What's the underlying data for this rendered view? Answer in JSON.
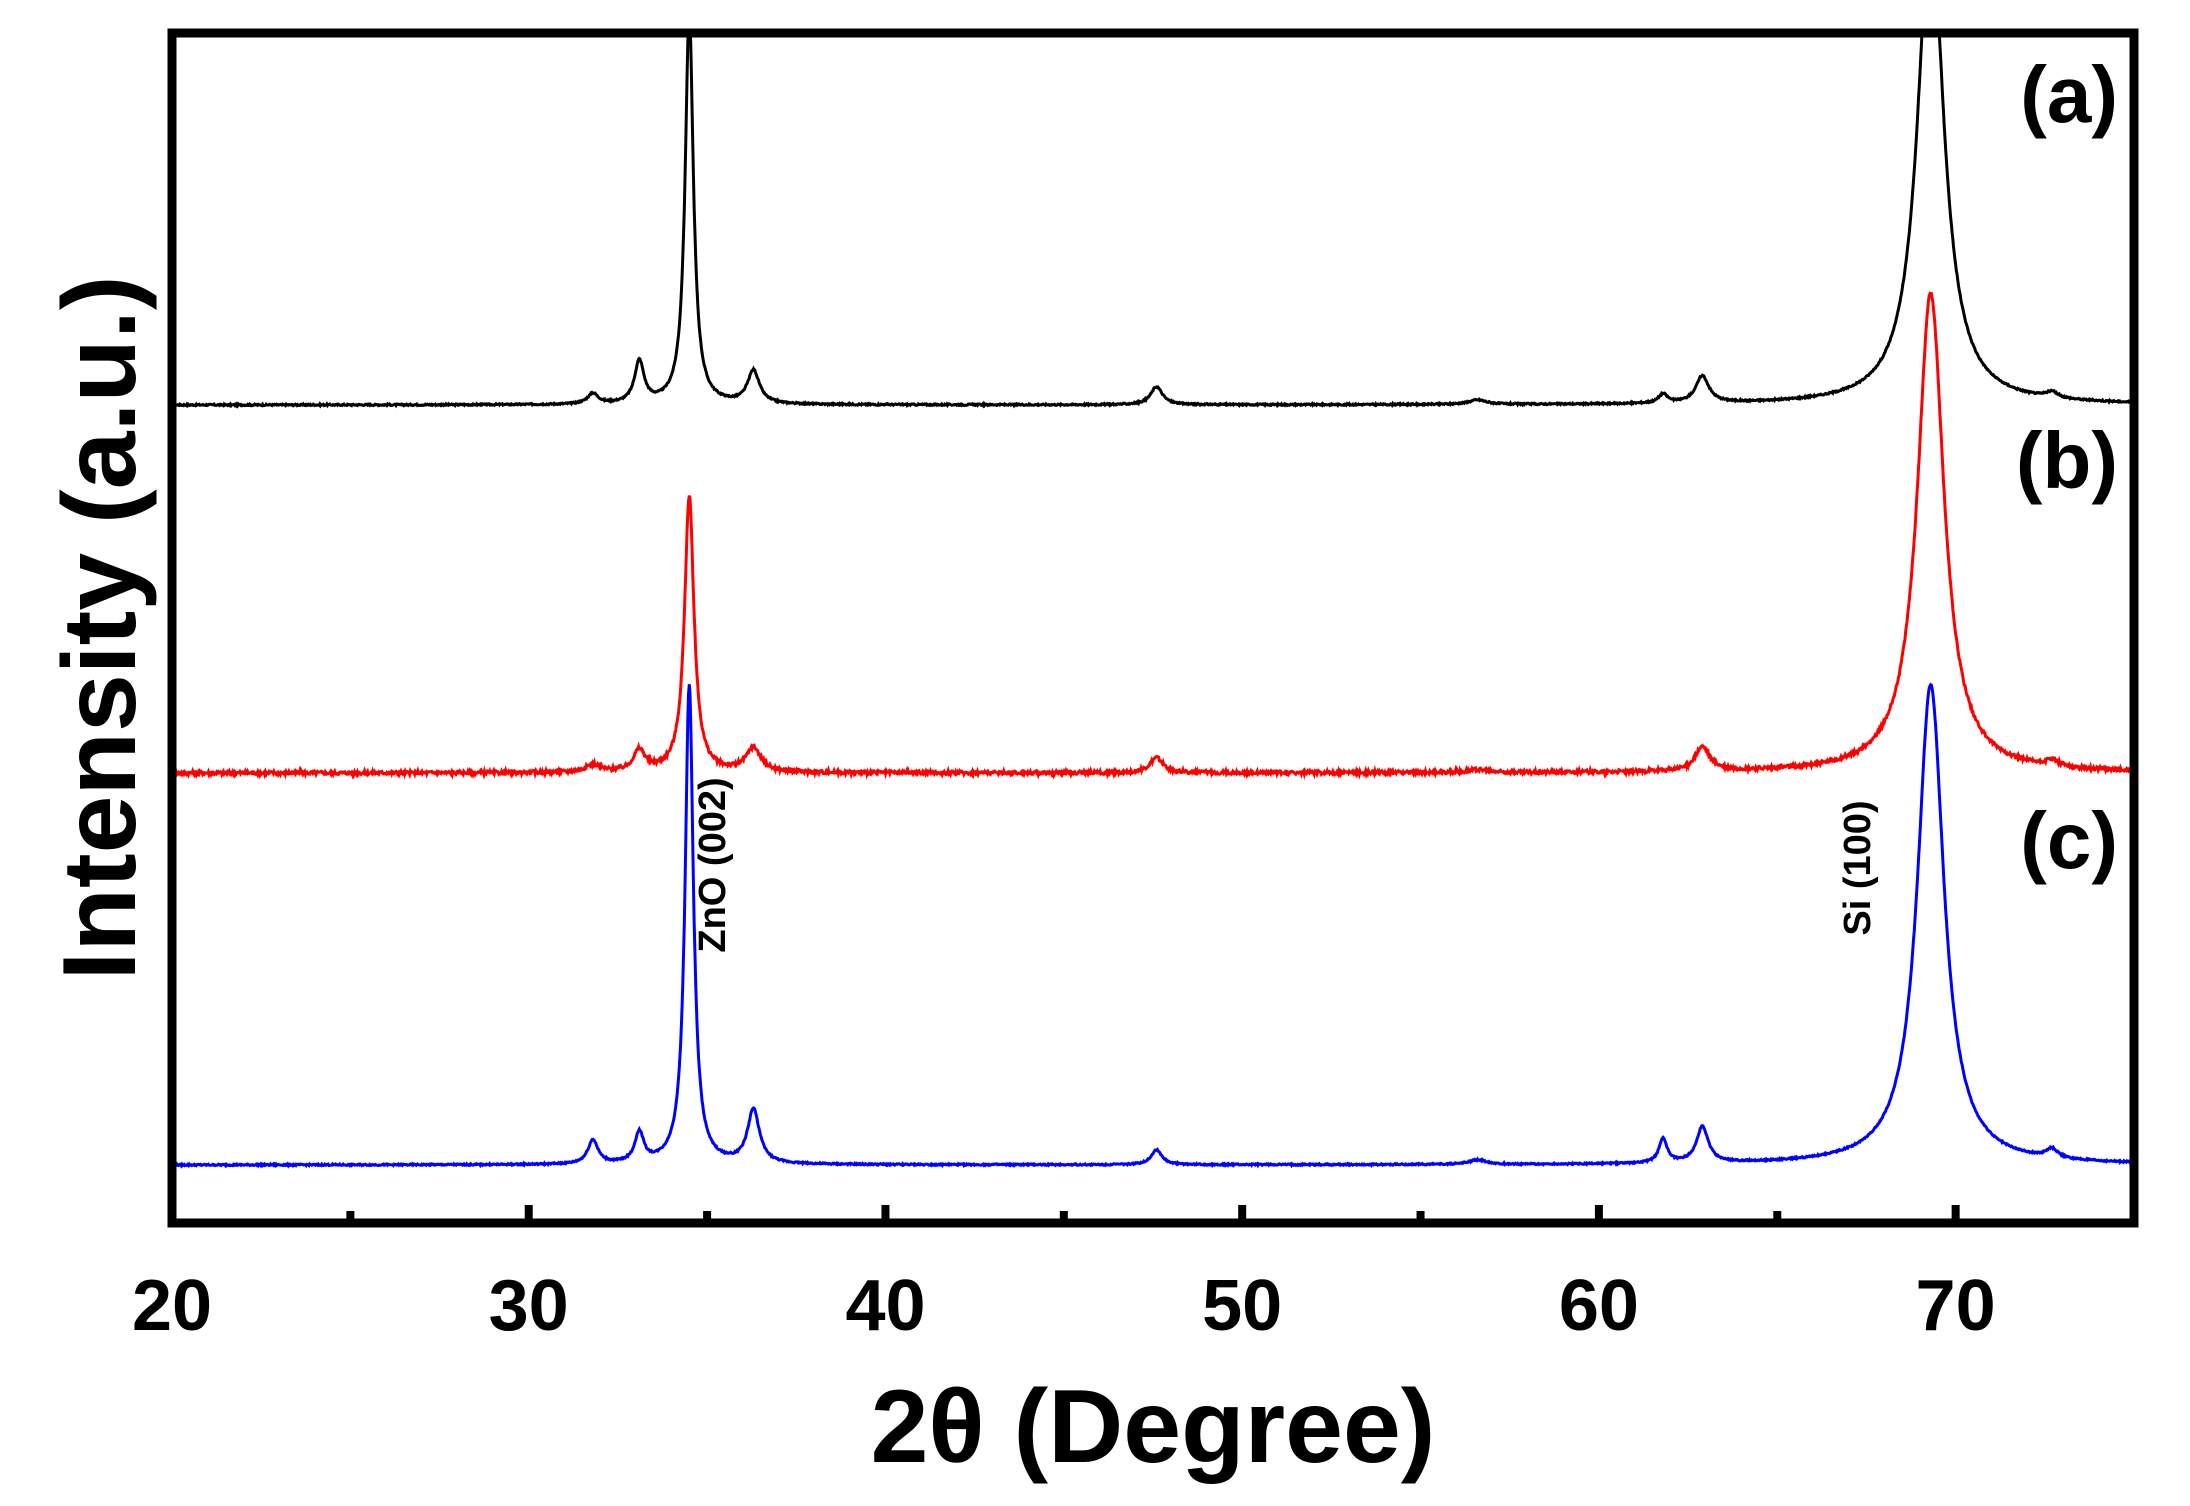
{
  "chart_data": {
    "type": "line",
    "xlabel": "2θ (Degree)",
    "ylabel": "Intensity (a.u.)",
    "xlim": [
      20,
      75
    ],
    "x_major_ticks": [
      20,
      30,
      40,
      50,
      60,
      70
    ],
    "x_minor_ticks": [
      25,
      35,
      45,
      55,
      65,
      75
    ],
    "y_scale": "arbitrary units, curves vertically offset",
    "grid": false,
    "legend": "none",
    "series": [
      {
        "label": "(a)",
        "color": "#000000",
        "offset": 2.0,
        "peaks": [
          {
            "x": 31.8,
            "h": 0.035,
            "w": 0.18
          },
          {
            "x": 33.1,
            "h": 0.14,
            "w": 0.16
          },
          {
            "x": 34.5,
            "h": 1.3,
            "w": 0.14
          },
          {
            "x": 36.3,
            "h": 0.11,
            "w": 0.2
          },
          {
            "x": 47.6,
            "h": 0.06,
            "w": 0.2
          },
          {
            "x": 56.6,
            "h": 0.015,
            "w": 0.3
          },
          {
            "x": 61.8,
            "h": 0.03,
            "w": 0.15
          },
          {
            "x": 62.9,
            "h": 0.09,
            "w": 0.22
          },
          {
            "x": 69.3,
            "h": 1.6,
            "w": 0.45
          },
          {
            "x": 72.7,
            "h": 0.02,
            "w": 0.2
          }
        ]
      },
      {
        "label": "(b)",
        "color": "#ff0000",
        "offset": 1.0,
        "peaks": [
          {
            "x": 31.8,
            "h": 0.025,
            "w": 0.25
          },
          {
            "x": 33.1,
            "h": 0.07,
            "w": 0.2
          },
          {
            "x": 34.5,
            "h": 0.92,
            "w": 0.16
          },
          {
            "x": 36.3,
            "h": 0.08,
            "w": 0.25
          },
          {
            "x": 47.6,
            "h": 0.05,
            "w": 0.22
          },
          {
            "x": 56.6,
            "h": 0.01,
            "w": 0.3
          },
          {
            "x": 62.9,
            "h": 0.08,
            "w": 0.25
          },
          {
            "x": 69.3,
            "h": 1.6,
            "w": 0.45
          },
          {
            "x": 72.7,
            "h": 0.02,
            "w": 0.2
          }
        ]
      },
      {
        "label": "(c)",
        "color": "#0000ff",
        "offset": 0.0,
        "peaks": [
          {
            "x": 31.8,
            "h": 0.08,
            "w": 0.17
          },
          {
            "x": 33.1,
            "h": 0.1,
            "w": 0.15
          },
          {
            "x": 34.5,
            "h": 1.6,
            "w": 0.14
          },
          {
            "x": 36.3,
            "h": 0.18,
            "w": 0.2
          },
          {
            "x": 47.6,
            "h": 0.05,
            "w": 0.18
          },
          {
            "x": 56.6,
            "h": 0.015,
            "w": 0.3
          },
          {
            "x": 61.8,
            "h": 0.08,
            "w": 0.14
          },
          {
            "x": 62.9,
            "h": 0.12,
            "w": 0.2
          },
          {
            "x": 69.3,
            "h": 1.6,
            "w": 0.45
          },
          {
            "x": 72.7,
            "h": 0.03,
            "w": 0.2
          }
        ]
      }
    ],
    "annotations": [
      {
        "text": "ZnO (002)",
        "x": 35.5
      },
      {
        "text": "Si (100)",
        "x": 67.6
      }
    ]
  }
}
